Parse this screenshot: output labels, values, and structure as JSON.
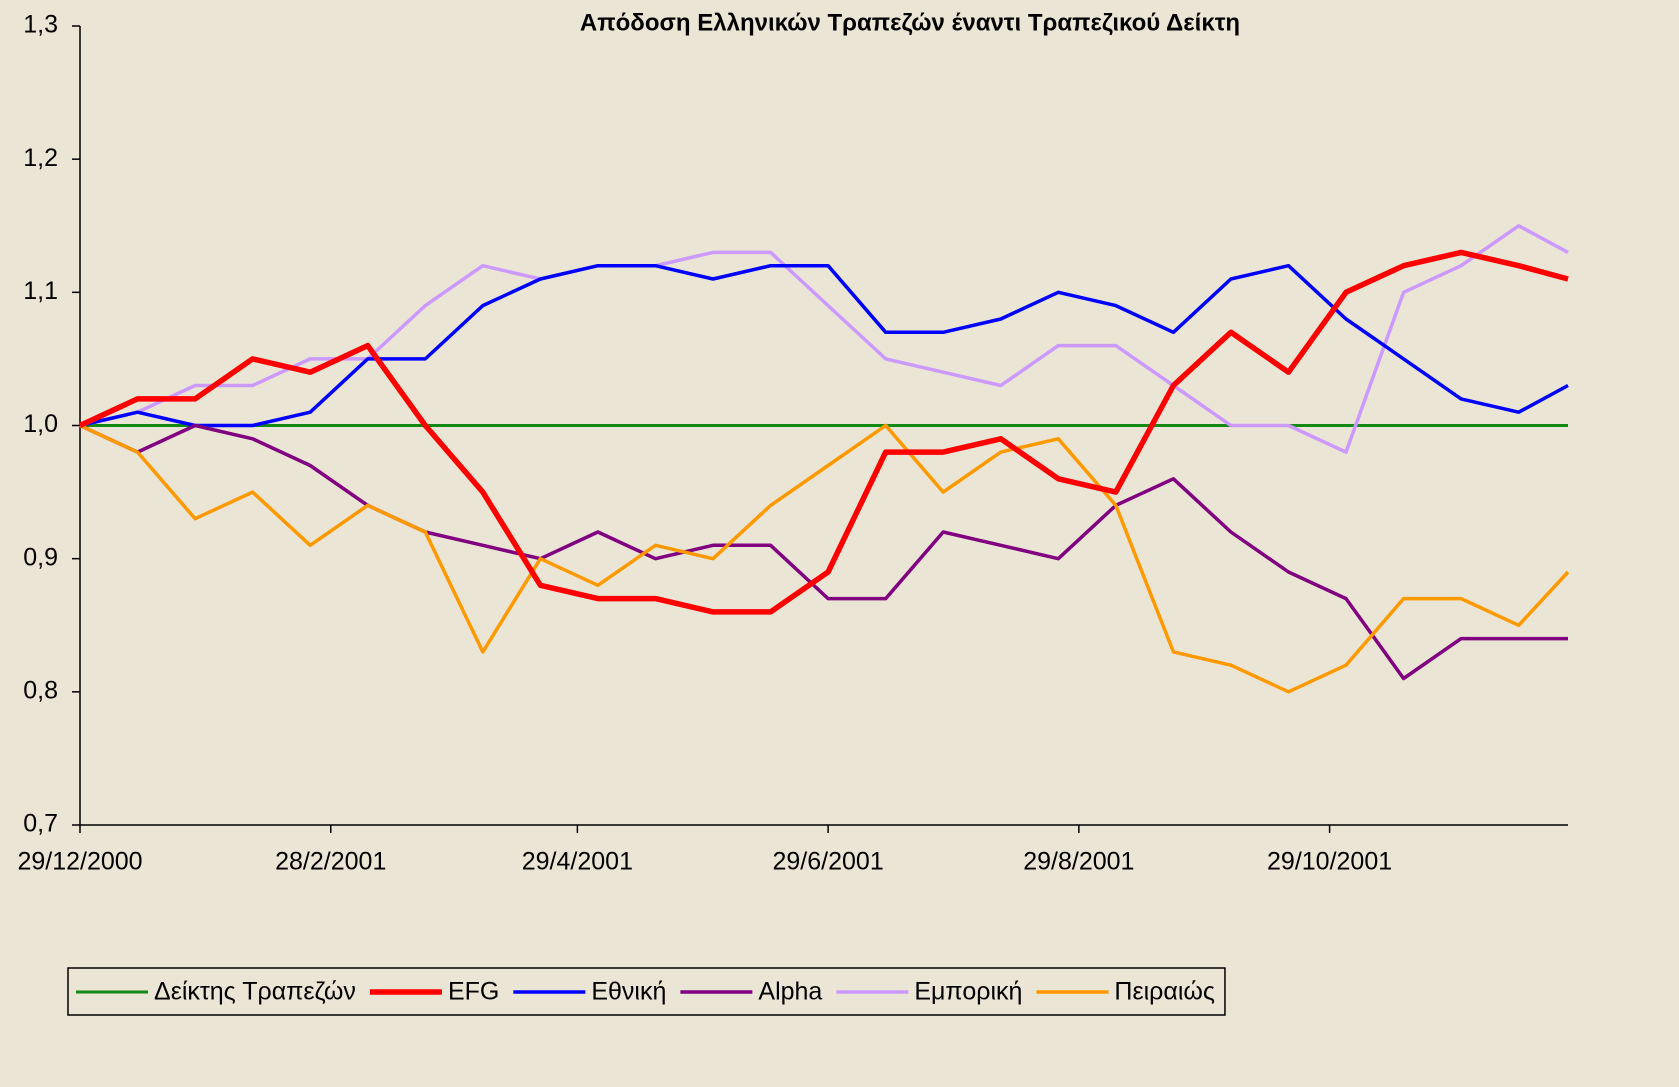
{
  "chart_data": {
    "type": "line",
    "title": "Απόδοση Ελληνικών Τραπεζών έναντι Τραπεζικού Δείκτη",
    "x": [
      "2000-12-29",
      "2001-01-12",
      "2001-01-26",
      "2001-02-09",
      "2001-02-23",
      "2001-03-09",
      "2001-03-23",
      "2001-04-06",
      "2001-04-20",
      "2001-05-04",
      "2001-05-18",
      "2001-06-01",
      "2001-06-15",
      "2001-06-29",
      "2001-07-13",
      "2001-07-27",
      "2001-08-10",
      "2001-08-24",
      "2001-09-07",
      "2001-09-21",
      "2001-10-05",
      "2001-10-19",
      "2001-11-02",
      "2001-11-16",
      "2001-11-30",
      "2001-12-14",
      "2001-12-26"
    ],
    "series": [
      {
        "name": "Δείκτης Τραπεζών",
        "color": "#138a13",
        "values": [
          1,
          1,
          1,
          1,
          1,
          1,
          1,
          1,
          1,
          1,
          1,
          1,
          1,
          1,
          1,
          1,
          1,
          1,
          1,
          1,
          1,
          1,
          1,
          1,
          1,
          1,
          1
        ]
      },
      {
        "name": "EFG",
        "color": "#ff0000",
        "values": [
          1.0,
          1.02,
          1.02,
          1.05,
          1.04,
          1.06,
          1.0,
          0.95,
          0.88,
          0.87,
          0.87,
          0.86,
          0.86,
          0.89,
          0.98,
          0.98,
          0.99,
          0.96,
          0.95,
          1.03,
          1.07,
          1.04,
          1.1,
          1.12,
          1.13,
          1.12,
          1.11
        ]
      },
      {
        "name": "Εθνική",
        "color": "#0000ff",
        "values": [
          1.0,
          1.01,
          1.0,
          1.0,
          1.01,
          1.05,
          1.05,
          1.09,
          1.11,
          1.12,
          1.12,
          1.11,
          1.12,
          1.12,
          1.07,
          1.07,
          1.08,
          1.1,
          1.09,
          1.07,
          1.11,
          1.12,
          1.08,
          1.05,
          1.02,
          1.01,
          1.03
        ]
      },
      {
        "name": "Alpha",
        "color": "#800080",
        "values": [
          1.0,
          0.98,
          1.0,
          0.99,
          0.97,
          0.94,
          0.92,
          0.91,
          0.9,
          0.92,
          0.9,
          0.91,
          0.91,
          0.87,
          0.87,
          0.92,
          0.91,
          0.9,
          0.94,
          0.96,
          0.92,
          0.89,
          0.87,
          0.81,
          0.84,
          0.84,
          0.84
        ]
      },
      {
        "name": "Εμπορική",
        "color": "#cc99ff",
        "values": [
          1.0,
          1.01,
          1.03,
          1.03,
          1.05,
          1.05,
          1.09,
          1.12,
          1.11,
          1.12,
          1.12,
          1.13,
          1.13,
          1.09,
          1.05,
          1.04,
          1.03,
          1.06,
          1.06,
          1.03,
          1.0,
          1.0,
          0.98,
          1.1,
          1.12,
          1.15,
          1.13
        ]
      },
      {
        "name": "Πειραιώς",
        "color": "#ff9900",
        "values": [
          1.0,
          0.98,
          0.93,
          0.95,
          0.91,
          0.94,
          0.92,
          0.83,
          0.9,
          0.88,
          0.91,
          0.9,
          0.94,
          0.97,
          1.0,
          0.95,
          0.98,
          0.99,
          0.94,
          0.83,
          0.82,
          0.8,
          0.82,
          0.87,
          0.87,
          0.85,
          0.89
        ]
      }
    ],
    "xlim": [
      "2000-12-29",
      "2001-12-26"
    ],
    "xticks": [
      {
        "value": "2000-12-29",
        "label": "29/12/2000"
      },
      {
        "value": "2001-02-28",
        "label": "28/2/2001"
      },
      {
        "value": "2001-04-29",
        "label": "29/4/2001"
      },
      {
        "value": "2001-06-29",
        "label": "29/6/2001"
      },
      {
        "value": "2001-08-29",
        "label": "29/8/2001"
      },
      {
        "value": "2001-10-29",
        "label": "29/10/2001"
      }
    ],
    "ylim": [
      0.7,
      1.3
    ],
    "yticks": [
      {
        "value": 0.7,
        "label": "0,7"
      },
      {
        "value": 0.8,
        "label": "0,8"
      },
      {
        "value": 0.9,
        "label": "0,9"
      },
      {
        "value": 1.0,
        "label": "1,0"
      },
      {
        "value": 1.1,
        "label": "1,1"
      },
      {
        "value": 1.2,
        "label": "1,2"
      },
      {
        "value": 1.3,
        "label": "1,3"
      }
    ],
    "legend": "bottom"
  }
}
